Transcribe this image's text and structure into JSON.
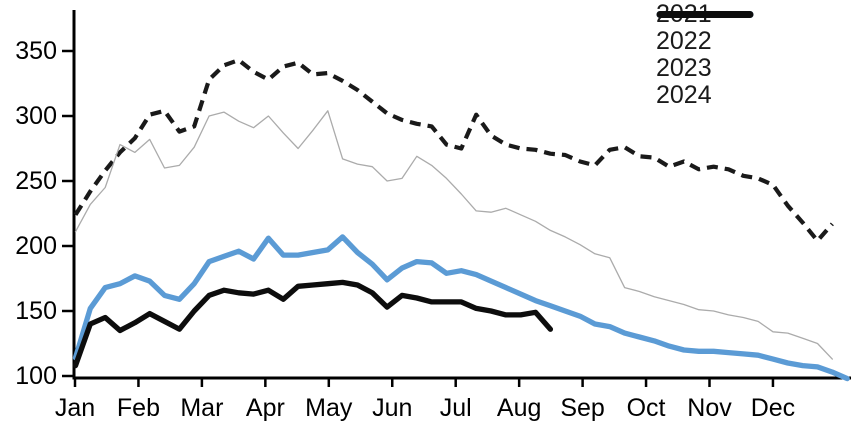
{
  "chart_data": {
    "type": "line",
    "title": "",
    "x_unit": "week_of_year",
    "x_axis": {
      "tick_labels": [
        "Jan",
        "Feb",
        "Mar",
        "Apr",
        "May",
        "Jun",
        "Jul",
        "Aug",
        "Sep",
        "Oct",
        "Nov",
        "Dec"
      ],
      "unit": "month"
    },
    "y_axis": {
      "ticks": [
        350,
        300,
        250,
        200,
        150,
        100
      ],
      "range": [
        100,
        360
      ]
    },
    "grid": false,
    "legend": {
      "position": "top-right",
      "entries": [
        "2021",
        "2022",
        "2023",
        "2024"
      ]
    },
    "series": [
      {
        "name": "2021",
        "color": "#1a1a1a",
        "line_style": "dashed",
        "thickness": "medium",
        "values": [
          224,
          242,
          258,
          272,
          283,
          301,
          304,
          288,
          292,
          328,
          339,
          343,
          334,
          328,
          338,
          341,
          332,
          333,
          327,
          320,
          311,
          302,
          297,
          294,
          292,
          278,
          275,
          301,
          285,
          278,
          275,
          274,
          271,
          270,
          265,
          262,
          274,
          276,
          269,
          268,
          261,
          265,
          259,
          261,
          259,
          254,
          252,
          247,
          231,
          218,
          204,
          217,
          null
        ]
      },
      {
        "name": "2022",
        "color": "#ababab",
        "line_style": "solid",
        "thickness": "thin",
        "values": [
          211,
          232,
          245,
          278,
          272,
          282,
          260,
          262,
          276,
          300,
          303,
          296,
          291,
          300,
          287,
          275,
          289,
          304,
          267,
          263,
          261,
          250,
          252,
          269,
          262,
          252,
          240,
          227,
          226,
          229,
          224,
          219,
          212,
          207,
          201,
          194,
          191,
          168,
          165,
          161,
          158,
          155,
          151,
          150,
          147,
          145,
          142,
          134,
          133,
          129,
          125,
          113,
          null
        ]
      },
      {
        "name": "2023",
        "color": "#5b9bd5",
        "line_style": "solid",
        "thickness": "thick",
        "values": [
          114,
          152,
          168,
          171,
          177,
          173,
          162,
          159,
          171,
          188,
          192,
          196,
          190,
          206,
          193,
          193,
          195,
          197,
          207,
          195,
          186,
          174,
          183,
          188,
          187,
          179,
          181,
          178,
          173,
          168,
          163,
          158,
          154,
          150,
          146,
          140,
          138,
          133,
          130,
          127,
          123,
          120,
          119,
          119,
          118,
          117,
          116,
          113,
          110,
          108,
          107,
          103,
          98
        ]
      },
      {
        "name": "2024",
        "color": "#0d0d0d",
        "line_style": "solid",
        "thickness": "thick",
        "values": [
          108,
          140,
          145,
          135,
          141,
          148,
          142,
          136,
          150,
          162,
          166,
          164,
          163,
          166,
          159,
          169,
          170,
          171,
          172,
          170,
          164,
          153,
          162,
          160,
          157,
          157,
          157,
          152,
          150,
          147,
          147,
          149,
          136
        ]
      }
    ]
  }
}
